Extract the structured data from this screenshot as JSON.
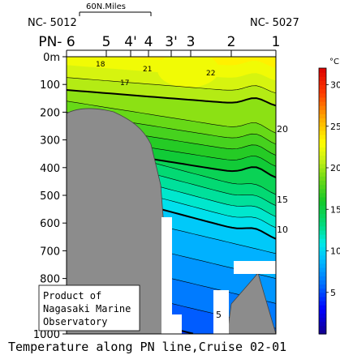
{
  "chart_data": {
    "type": "heatmap",
    "title": "Temperature along PN line,Cruise 02-01",
    "unit_label": "°C",
    "scale_bar_label": "60N.Miles",
    "station_ids": {
      "left": "NC- 5012",
      "right": "NC- 5027"
    },
    "station_prefix": "PN-",
    "stations": [
      "6",
      "5",
      "4'",
      "4",
      "3'",
      "3",
      "2",
      "1"
    ],
    "y_axis": {
      "min": 0,
      "max": 1000,
      "unit": "m",
      "inverted": true,
      "ticks": [
        "0m",
        "100",
        "200",
        "300",
        "400",
        "500",
        "600",
        "700",
        "800",
        "900",
        "1000"
      ]
    },
    "colorbar": {
      "min": 0,
      "max": 32,
      "ticks": [
        "5",
        "10",
        "15",
        "20",
        "25",
        "30"
      ],
      "tick_values": [
        5,
        10,
        15,
        20,
        25,
        30
      ]
    },
    "contour_labels": [
      {
        "text": "22",
        "value": 22
      },
      {
        "text": "21",
        "value": 21
      },
      {
        "text": "18",
        "value": 18
      },
      {
        "text": "17",
        "value": 17
      },
      {
        "text": "20",
        "value": 20
      },
      {
        "text": "15",
        "value": 15
      },
      {
        "text": "10",
        "value": 10
      },
      {
        "text": "5",
        "value": 5
      }
    ],
    "credit": [
      "Product of",
      "Nagasaki Marine",
      "Observatory"
    ]
  }
}
